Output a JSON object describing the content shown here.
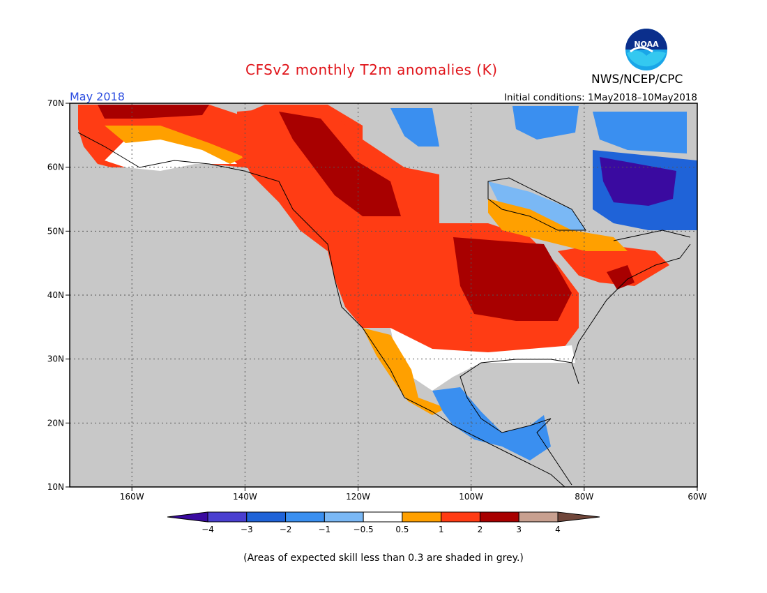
{
  "header": {
    "title": "CFSv2 monthly T2m anomalies (K)",
    "organization": "NWS/NCEP/CPC",
    "valid_month": "May 2018",
    "initial_conditions": "Initial conditions: 1May2018–10May2018",
    "logo_text": "NOAA"
  },
  "map": {
    "lon_labels": [
      "160W",
      "140W",
      "120W",
      "100W",
      "80W",
      "60W"
    ],
    "lat_labels": [
      "70N",
      "60N",
      "50N",
      "40N",
      "30N",
      "20N",
      "10N"
    ],
    "background_color": "#c8c8c8"
  },
  "colorbar": {
    "tick_labels": [
      "−4",
      "−3",
      "−2",
      "−1",
      "−0.5",
      "0.5",
      "1",
      "2",
      "3",
      "4"
    ],
    "colors": [
      "#3a0aa0",
      "#4a3fd0",
      "#1f63d8",
      "#3a8ff0",
      "#7ab8f5",
      "#ffffff",
      "#ffa000",
      "#ff3c14",
      "#a80000",
      "#c8a090",
      "#70463a"
    ]
  },
  "footnote": "(Areas of expected skill less than 0.3 are shaded in grey.)"
}
